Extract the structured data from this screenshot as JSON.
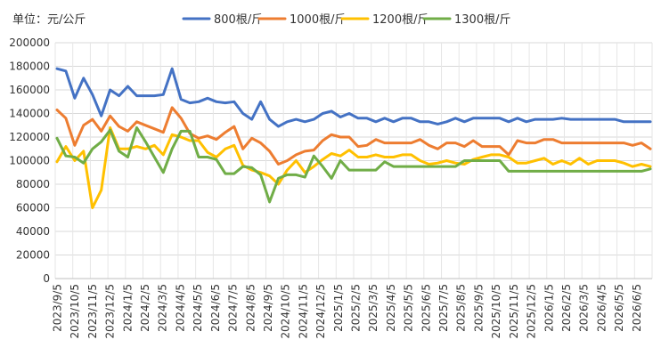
{
  "chart_data": {
    "type": "line",
    "unit_label": "单位：元/公斤",
    "xlabel": "",
    "ylabel": "",
    "ylim": [
      0,
      200000
    ],
    "yticks": [
      0,
      20000,
      40000,
      60000,
      80000,
      100000,
      120000,
      140000,
      160000,
      180000,
      200000
    ],
    "grid": true,
    "legend_position": "top",
    "x_tick_labels": [
      "2023/9/5",
      "2023/10/5",
      "2023/11/5",
      "2023/12/5",
      "2024/1/5",
      "2024/2/5",
      "2024/3/5",
      "2024/4/5",
      "2024/5/5",
      "2024/6/5",
      "2024/7/5",
      "2024/8/5",
      "2024/9/5",
      "2024/10/5",
      "2024/11/5",
      "2024/12/5",
      "2025/1/5",
      "2025/2/5",
      "2025/3/5",
      "2025/4/5",
      "2025/5/5",
      "2025/6/5",
      "2025/7/5",
      "2025/8/5",
      "2025/9/5",
      "2025/10/5",
      "2025/11/5",
      "2025/12/5",
      "2026/1/5",
      "2026/2/5",
      "2026/3/5",
      "2026/4/5",
      "2026/5/5",
      "2026/6/5"
    ],
    "series": [
      {
        "name": "800根/斤",
        "color": "#4472C4",
        "values": [
          178000,
          176000,
          153000,
          170000,
          156000,
          138000,
          160000,
          155000,
          163000,
          155000,
          155000,
          155000,
          156000,
          178000,
          152000,
          149000,
          150000,
          153000,
          150000,
          149000,
          150000,
          140000,
          135000,
          150000,
          135000,
          129000,
          133000,
          135000,
          133000,
          135000,
          140000,
          142000,
          137000,
          140000,
          136000,
          136000,
          133000,
          136000,
          133000,
          136000,
          136000,
          133000,
          133000,
          131000,
          133000,
          136000,
          133000,
          136000,
          136000,
          136000,
          136000,
          133000,
          136000,
          133000,
          135000,
          135000,
          135000,
          136000,
          135000,
          135000,
          135000,
          135000,
          135000,
          135000,
          133000,
          133000,
          133000,
          133000
        ]
      },
      {
        "name": "1000根/斤",
        "color": "#ED7D31",
        "values": [
          143000,
          136000,
          113000,
          130000,
          135000,
          125000,
          138000,
          129000,
          125000,
          133000,
          130000,
          127000,
          124000,
          145000,
          136000,
          123000,
          119000,
          121000,
          118000,
          124000,
          129000,
          110000,
          119000,
          115000,
          108000,
          97000,
          100000,
          105000,
          108000,
          109000,
          117000,
          122000,
          120000,
          120000,
          112000,
          113000,
          118000,
          115000,
          115000,
          115000,
          115000,
          118000,
          113000,
          110000,
          115000,
          115000,
          112000,
          117000,
          112000,
          112000,
          112000,
          105000,
          117000,
          115000,
          115000,
          118000,
          118000,
          115000,
          115000,
          115000,
          115000,
          115000,
          115000,
          115000,
          115000,
          113000,
          115000,
          110000
        ]
      },
      {
        "name": "1200根/斤",
        "color": "#FFC000",
        "values": [
          99000,
          112000,
          100000,
          108000,
          60000,
          75000,
          128000,
          110000,
          110000,
          112000,
          110000,
          113000,
          105000,
          122000,
          120000,
          117000,
          117000,
          107000,
          103000,
          110000,
          113000,
          96000,
          92000,
          90000,
          87000,
          80000,
          92000,
          100000,
          90000,
          95000,
          101000,
          106000,
          104000,
          109000,
          103000,
          103000,
          105000,
          103000,
          103000,
          105000,
          105000,
          100000,
          97000,
          98000,
          100000,
          98000,
          97000,
          101000,
          103000,
          105000,
          105000,
          103000,
          98000,
          98000,
          100000,
          102000,
          97000,
          100000,
          97000,
          102000,
          97000,
          100000,
          100000,
          100000,
          98000,
          95000,
          97000,
          95000
        ]
      },
      {
        "name": "1300根/斤",
        "color": "#70AD47",
        "values": [
          119000,
          104000,
          103000,
          98000,
          110000,
          116000,
          126000,
          108000,
          103000,
          128000,
          116000,
          103000,
          90000,
          110000,
          125000,
          125000,
          103000,
          103000,
          101000,
          89000,
          89000,
          95000,
          94000,
          88000,
          65000,
          85000,
          88000,
          88000,
          86000,
          104000,
          95000,
          85000,
          100000,
          92000,
          92000,
          92000,
          92000,
          99000,
          95000,
          95000,
          95000,
          95000,
          95000,
          95000,
          95000,
          95000,
          100000,
          100000,
          100000,
          100000,
          100000,
          91000,
          91000,
          91000,
          91000,
          91000,
          91000,
          91000,
          91000,
          91000,
          91000,
          91000,
          91000,
          91000,
          91000,
          91000,
          91000,
          93000
        ]
      }
    ]
  }
}
